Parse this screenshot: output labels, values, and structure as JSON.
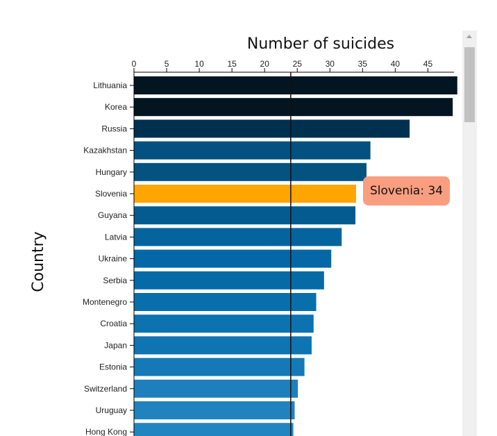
{
  "chart_data": {
    "type": "bar",
    "orientation": "horizontal",
    "xlabel": "Number of suicides",
    "ylabel": "Country",
    "xlim": [
      0,
      49
    ],
    "x_ticks": [
      0,
      5,
      10,
      15,
      20,
      25,
      30,
      35,
      40,
      45
    ],
    "reference_line": 24,
    "categories": [
      "Lithuania",
      "Korea",
      "Russia",
      "Kazakhstan",
      "Hungary",
      "Slovenia",
      "Guyana",
      "Latvia",
      "Ukraine",
      "Serbia",
      "Montenegro",
      "Croatia",
      "Japan",
      "Estonia",
      "Switzerland",
      "Uruguay",
      "Hong Kong"
    ],
    "values": [
      49.5,
      48.8,
      42.2,
      36.2,
      35.6,
      34,
      33.9,
      31.8,
      30.2,
      29.1,
      27.9,
      27.5,
      27.2,
      26.1,
      25.1,
      24.6,
      24.4
    ],
    "colors": [
      "#021521",
      "#021521",
      "#003050",
      "#03517f",
      "#03527f",
      "#ffa500",
      "#045b8f",
      "#05649d",
      "#0567a5",
      "#066aa6",
      "#086faa",
      "#0c72b0",
      "#0e74b2",
      "#1579b8",
      "#1f7fbc",
      "#2083bd",
      "#2285c0"
    ],
    "highlight": "Slovenia",
    "tooltip": "Slovenia: 34",
    "grid": false
  }
}
